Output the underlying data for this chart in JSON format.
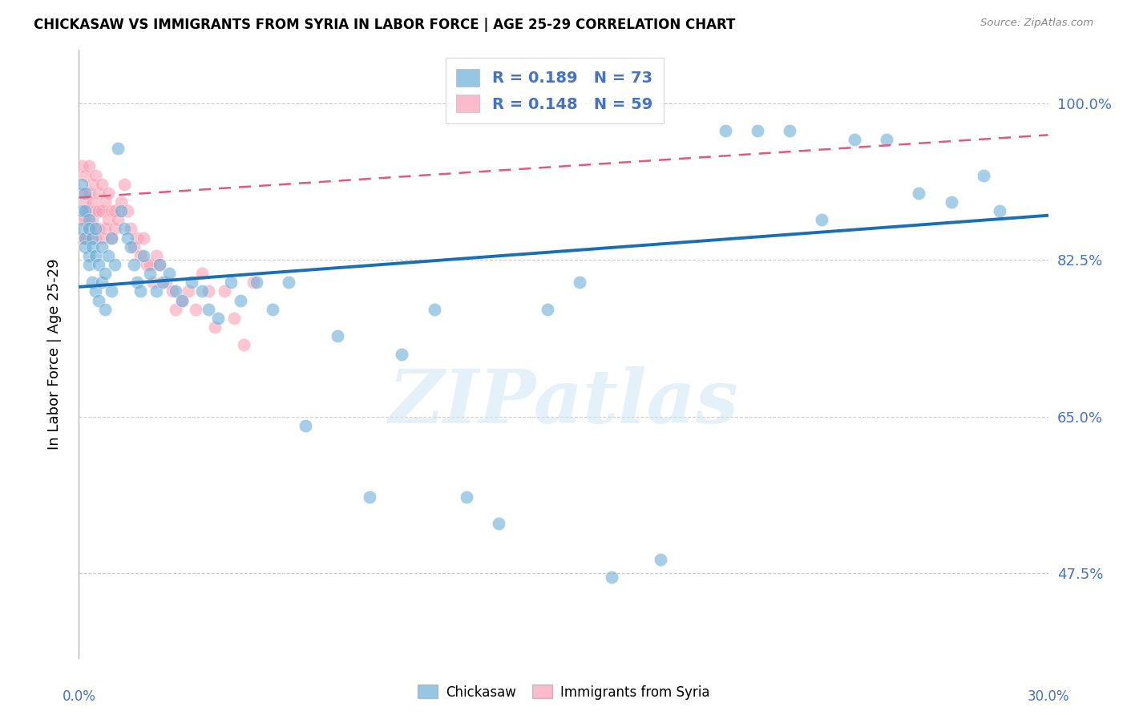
{
  "title": "CHICKASAW VS IMMIGRANTS FROM SYRIA IN LABOR FORCE | AGE 25-29 CORRELATION CHART",
  "source": "Source: ZipAtlas.com",
  "ylabel": "In Labor Force | Age 25-29",
  "ytick_labels": [
    "100.0%",
    "82.5%",
    "65.0%",
    "47.5%"
  ],
  "ytick_values": [
    1.0,
    0.825,
    0.65,
    0.475
  ],
  "xlim": [
    0.0,
    0.3
  ],
  "ylim": [
    0.38,
    1.06
  ],
  "legend_blue_R": "R = 0.189",
  "legend_blue_N": "N = 73",
  "legend_pink_R": "R = 0.148",
  "legend_pink_N": "N = 59",
  "legend_label_blue": "Chickasaw",
  "legend_label_pink": "Immigrants from Syria",
  "blue_color": "#6baed6",
  "pink_color": "#fa9fb5",
  "blue_line_color": "#1a6eb5",
  "pink_line_color": "#e05a7a",
  "watermark": "ZIPatlas",
  "blue_line_x0": 0.0,
  "blue_line_y0": 0.795,
  "blue_line_x1": 0.3,
  "blue_line_y1": 0.875,
  "pink_line_x0": 0.0,
  "pink_line_y0": 0.895,
  "pink_line_x1": 0.3,
  "pink_line_y1": 0.965,
  "blue_scatter_x": [
    0.001,
    0.001,
    0.001,
    0.002,
    0.002,
    0.002,
    0.002,
    0.003,
    0.003,
    0.003,
    0.003,
    0.004,
    0.004,
    0.004,
    0.005,
    0.005,
    0.005,
    0.006,
    0.006,
    0.007,
    0.007,
    0.008,
    0.008,
    0.009,
    0.01,
    0.01,
    0.011,
    0.012,
    0.013,
    0.014,
    0.015,
    0.016,
    0.017,
    0.018,
    0.019,
    0.02,
    0.022,
    0.024,
    0.025,
    0.026,
    0.028,
    0.03,
    0.032,
    0.035,
    0.038,
    0.04,
    0.043,
    0.047,
    0.05,
    0.055,
    0.06,
    0.065,
    0.07,
    0.08,
    0.09,
    0.1,
    0.11,
    0.12,
    0.13,
    0.145,
    0.155,
    0.165,
    0.18,
    0.2,
    0.22,
    0.24,
    0.26,
    0.27,
    0.28,
    0.285,
    0.25,
    0.23,
    0.21
  ],
  "blue_scatter_y": [
    0.88,
    0.91,
    0.86,
    0.9,
    0.85,
    0.88,
    0.84,
    0.87,
    0.83,
    0.86,
    0.82,
    0.85,
    0.8,
    0.84,
    0.83,
    0.79,
    0.86,
    0.82,
    0.78,
    0.84,
    0.8,
    0.81,
    0.77,
    0.83,
    0.85,
    0.79,
    0.82,
    0.95,
    0.88,
    0.86,
    0.85,
    0.84,
    0.82,
    0.8,
    0.79,
    0.83,
    0.81,
    0.79,
    0.82,
    0.8,
    0.81,
    0.79,
    0.78,
    0.8,
    0.79,
    0.77,
    0.76,
    0.8,
    0.78,
    0.8,
    0.77,
    0.8,
    0.64,
    0.74,
    0.56,
    0.72,
    0.77,
    0.56,
    0.53,
    0.77,
    0.8,
    0.47,
    0.49,
    0.97,
    0.97,
    0.96,
    0.9,
    0.89,
    0.92,
    0.88,
    0.96,
    0.87,
    0.97
  ],
  "pink_scatter_x": [
    0.001,
    0.001,
    0.001,
    0.001,
    0.002,
    0.002,
    0.002,
    0.002,
    0.003,
    0.003,
    0.003,
    0.003,
    0.004,
    0.004,
    0.004,
    0.005,
    0.005,
    0.005,
    0.006,
    0.006,
    0.006,
    0.007,
    0.007,
    0.007,
    0.008,
    0.008,
    0.009,
    0.009,
    0.01,
    0.01,
    0.011,
    0.011,
    0.012,
    0.013,
    0.014,
    0.015,
    0.016,
    0.017,
    0.018,
    0.019,
    0.02,
    0.021,
    0.022,
    0.023,
    0.024,
    0.025,
    0.027,
    0.029,
    0.03,
    0.032,
    0.034,
    0.036,
    0.038,
    0.04,
    0.042,
    0.045,
    0.048,
    0.051,
    0.054
  ],
  "pink_scatter_y": [
    0.93,
    0.9,
    0.87,
    0.85,
    0.92,
    0.89,
    0.87,
    0.85,
    0.93,
    0.9,
    0.88,
    0.86,
    0.91,
    0.89,
    0.87,
    0.92,
    0.88,
    0.85,
    0.9,
    0.88,
    0.86,
    0.91,
    0.88,
    0.85,
    0.89,
    0.86,
    0.9,
    0.87,
    0.88,
    0.85,
    0.88,
    0.86,
    0.87,
    0.89,
    0.91,
    0.88,
    0.86,
    0.84,
    0.85,
    0.83,
    0.85,
    0.82,
    0.82,
    0.8,
    0.83,
    0.82,
    0.8,
    0.79,
    0.77,
    0.78,
    0.79,
    0.77,
    0.81,
    0.79,
    0.75,
    0.79,
    0.76,
    0.73,
    0.8
  ]
}
